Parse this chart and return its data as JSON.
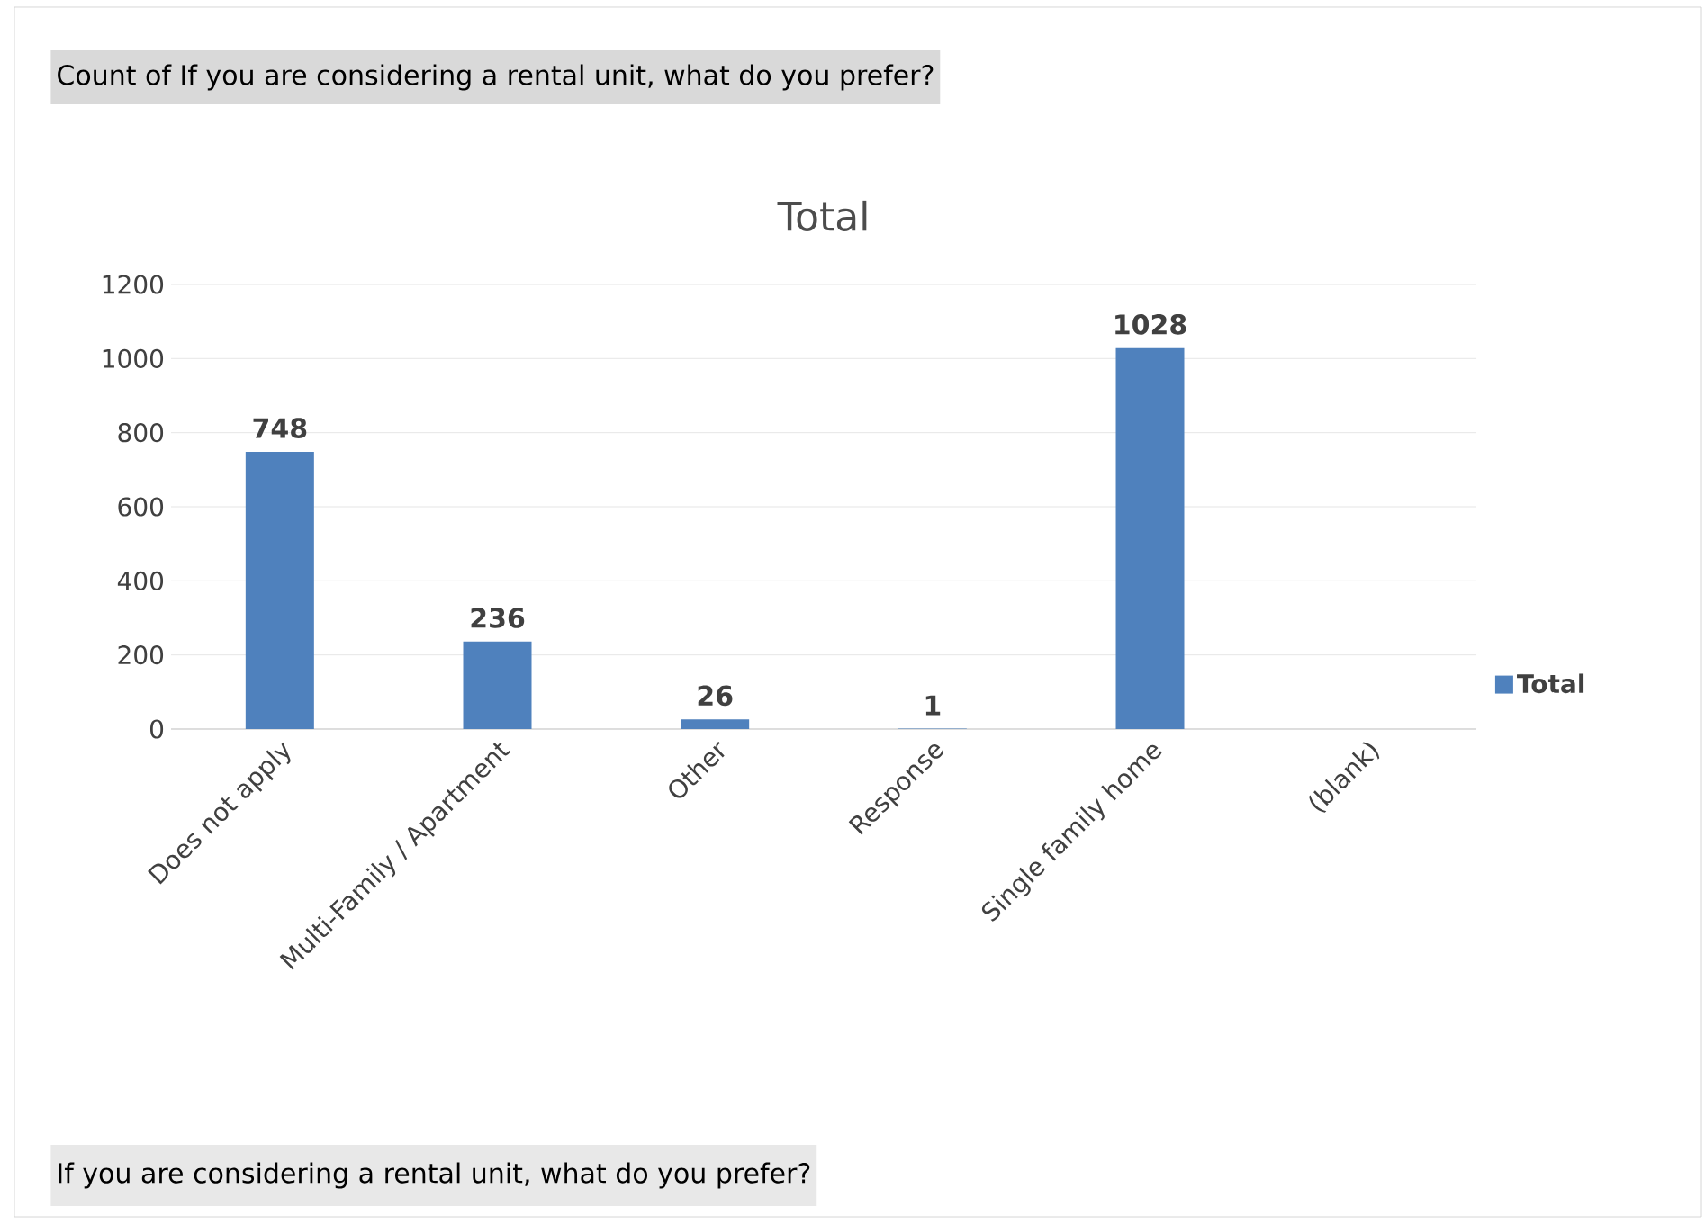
{
  "chart_data": {
    "type": "bar",
    "title": "Total",
    "categories": [
      "Does not apply",
      "Multi-Family / Apartment",
      "Other",
      "Response",
      "Single family home",
      "(blank)"
    ],
    "series": [
      {
        "name": "Total",
        "color": "#4f81bd",
        "values": [
          748,
          236,
          26,
          1,
          1028,
          null
        ]
      }
    ],
    "ylim": [
      0,
      1200
    ],
    "yticks": [
      0,
      200,
      400,
      600,
      800,
      1000,
      1200
    ],
    "grid": "y",
    "legend": "right",
    "data_labels": true,
    "annotations": [
      "Count of If you are considering a rental unit, what do you prefer?",
      "If you are considering a rental unit, what do you prefer?"
    ]
  }
}
